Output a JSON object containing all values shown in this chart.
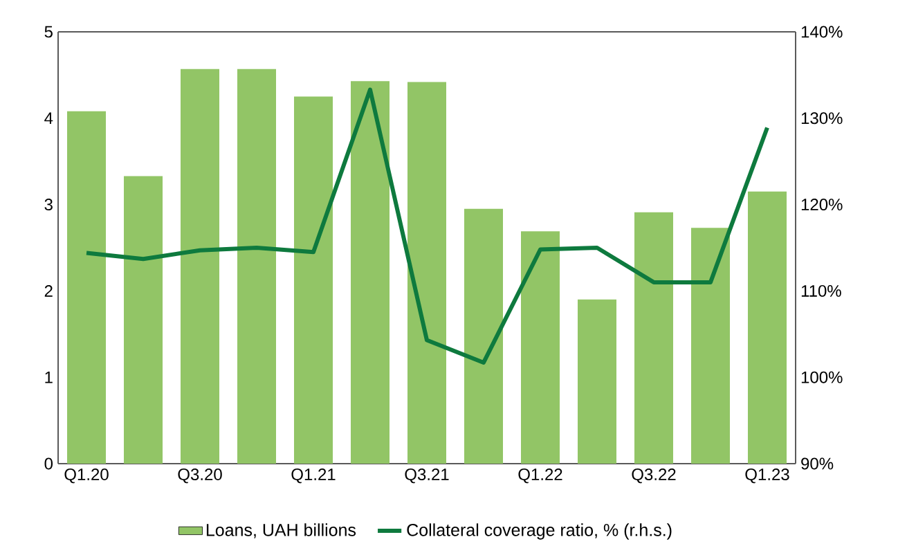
{
  "chart_data": {
    "type": "bar",
    "categories": [
      "Q1.20",
      null,
      "Q3.20",
      null,
      "Q1.21",
      null,
      "Q3.21",
      null,
      "Q1.22",
      null,
      "Q3.22",
      null,
      "Q1.23"
    ],
    "series": [
      {
        "name": "Loans, UAH billions",
        "color": "#92c566",
        "values": [
          4.08,
          3.33,
          4.57,
          4.57,
          4.25,
          4.43,
          4.42,
          2.95,
          2.69,
          1.9,
          2.91,
          2.73,
          3.15
        ]
      },
      {
        "name": "Collateral coverage ratio, % (r.h.s.)",
        "type": "line",
        "axis": "y2",
        "color": "#0e7a3e",
        "values": [
          114.4,
          113.7,
          114.7,
          115.0,
          114.5,
          133.3,
          104.3,
          101.7,
          114.8,
          115.0,
          111.0,
          111.0,
          128.9
        ]
      }
    ],
    "ylim": [
      0,
      5
    ],
    "yticks": [
      0,
      1,
      2,
      3,
      4,
      5
    ],
    "y2lim": [
      90,
      140
    ],
    "y2ticks": [
      {
        "value": 90,
        "label": "90%"
      },
      {
        "value": 100,
        "label": "100%"
      },
      {
        "value": 110,
        "label": "110%"
      },
      {
        "value": 120,
        "label": "120%"
      },
      {
        "value": 130,
        "label": "130%"
      },
      {
        "value": 140,
        "label": "140%"
      }
    ],
    "legend": "bottom",
    "grid": false
  }
}
